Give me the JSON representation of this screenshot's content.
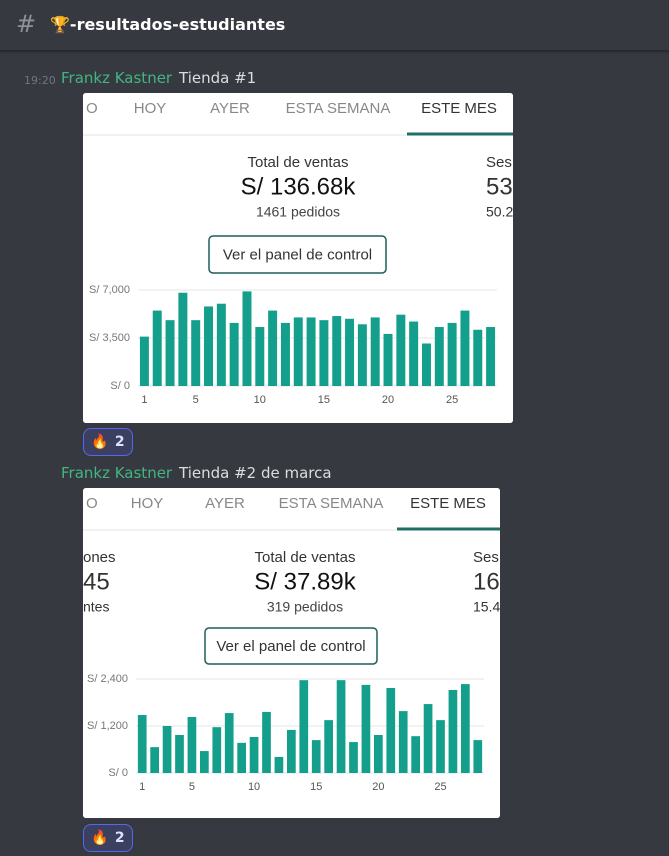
{
  "channel": {
    "name": "🏆-resultados-estudiantes"
  },
  "messages": [
    {
      "time": "19:20",
      "author": "Frankz Kastner",
      "text": "Tienda #1",
      "embed": {
        "tabs": [
          "O",
          "HOY",
          "AYER",
          "ESTA SEMANA",
          "ESTE MES"
        ],
        "main_stat": {
          "label": "Total de ventas",
          "value": "S/ 136.68k",
          "sub": "1461 pedidos"
        },
        "right_stat": [
          "Ses",
          "53",
          "50.2"
        ],
        "button": "Ver el panel de control",
        "chart_data": {
          "type": "bar",
          "categories": [
            1,
            null,
            null,
            null,
            5,
            null,
            null,
            null,
            null,
            10,
            null,
            null,
            null,
            null,
            15,
            null,
            null,
            null,
            null,
            20,
            null,
            null,
            null,
            null,
            25,
            null,
            null,
            null
          ],
          "values": [
            3600,
            5500,
            4800,
            6800,
            4800,
            5800,
            6000,
            4600,
            6900,
            4300,
            5500,
            4600,
            5000,
            5000,
            4800,
            5100,
            4900,
            4500,
            5000,
            3800,
            5200,
            4700,
            3100,
            4300,
            4600,
            5500,
            4100,
            4300
          ],
          "color": "#149e8c",
          "ylim": [
            0,
            7000
          ],
          "yticks": [
            {
              "value": 0,
              "label": "S/ 0"
            },
            {
              "value": 3500,
              "label": "S/ 3,500"
            },
            {
              "value": 7000,
              "label": "S/ 7,000"
            }
          ],
          "grid": true
        }
      },
      "reaction": {
        "emoji": "🔥",
        "count": 2
      }
    },
    {
      "author": "Frankz Kastner",
      "text": "Tienda #2 de marca",
      "embed": {
        "tabs": [
          "O",
          "HOY",
          "AYER",
          "ESTA SEMANA",
          "ESTE MES"
        ],
        "left_stat": [
          "ones",
          "45",
          "ntes"
        ],
        "main_stat": {
          "label": "Total de ventas",
          "value": "S/ 37.89k",
          "sub": "319 pedidos"
        },
        "right_stat": [
          "Ses",
          "16.",
          "15.4"
        ],
        "button": "Ver el panel de control",
        "chart_data": {
          "type": "bar",
          "categories": [
            1,
            null,
            null,
            null,
            5,
            null,
            null,
            null,
            null,
            10,
            null,
            null,
            null,
            null,
            15,
            null,
            null,
            null,
            null,
            20,
            null,
            null,
            null,
            null,
            25,
            null,
            null,
            null
          ],
          "values": [
            1480,
            660,
            1200,
            970,
            1430,
            560,
            1170,
            1530,
            770,
            920,
            1560,
            410,
            1100,
            2370,
            840,
            1350,
            2370,
            790,
            2250,
            970,
            2170,
            1580,
            940,
            1760,
            1350,
            2120,
            2270,
            840
          ],
          "color": "#149e8c",
          "ylim": [
            0,
            2400
          ],
          "yticks": [
            {
              "value": 0,
              "label": "S/ 0"
            },
            {
              "value": 1200,
              "label": "S/ 1,200"
            },
            {
              "value": 2400,
              "label": "S/ 2,400"
            }
          ],
          "grid": true
        }
      },
      "reaction": {
        "emoji": "🔥",
        "count": 2
      }
    }
  ]
}
